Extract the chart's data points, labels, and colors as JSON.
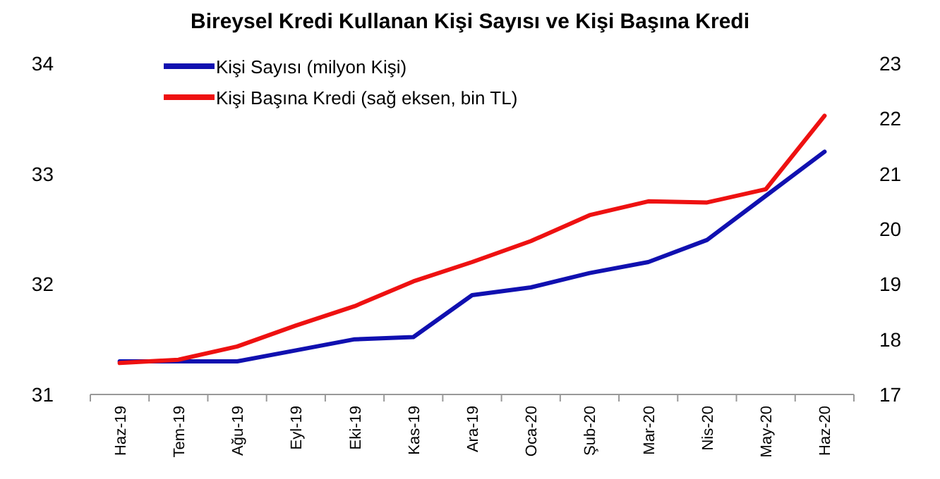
{
  "chart_data": {
    "type": "line",
    "title": "Bireysel Kredi Kullanan Kişi Sayısı ve Kişi Başına Kredi",
    "categories": [
      "Haz-19",
      "Tem-19",
      "Ağu-19",
      "Eyl-19",
      "Eki-19",
      "Kas-19",
      "Ara-19",
      "Oca-20",
      "Şub-20",
      "Mar-20",
      "Nis-20",
      "May-20",
      "Haz-20"
    ],
    "series": [
      {
        "name": "Kişi Sayısı (milyon Kişi)",
        "color": "#1010b0",
        "values": [
          31.3,
          31.3,
          31.3,
          31.4,
          31.5,
          31.52,
          31.9,
          31.97,
          32.1,
          32.2,
          32.4,
          32.8,
          33.2
        ]
      },
      {
        "name": "Kişi Başına Kredi (sağ eksen, bin TL)",
        "color": "#ee1111",
        "axis": "y2",
        "values": [
          17.57,
          17.63,
          17.87,
          18.25,
          18.6,
          19.05,
          19.4,
          19.78,
          20.25,
          20.5,
          20.48,
          20.72,
          22.05
        ]
      }
    ],
    "ylim": [
      31,
      34
    ],
    "yticks": [
      31,
      32,
      33,
      34
    ],
    "y2lim": [
      17,
      23
    ],
    "y2ticks": [
      17,
      18,
      19,
      20,
      21,
      22,
      23
    ],
    "grid": false,
    "legend": "top left",
    "marker": "none",
    "line_style": "solid"
  }
}
